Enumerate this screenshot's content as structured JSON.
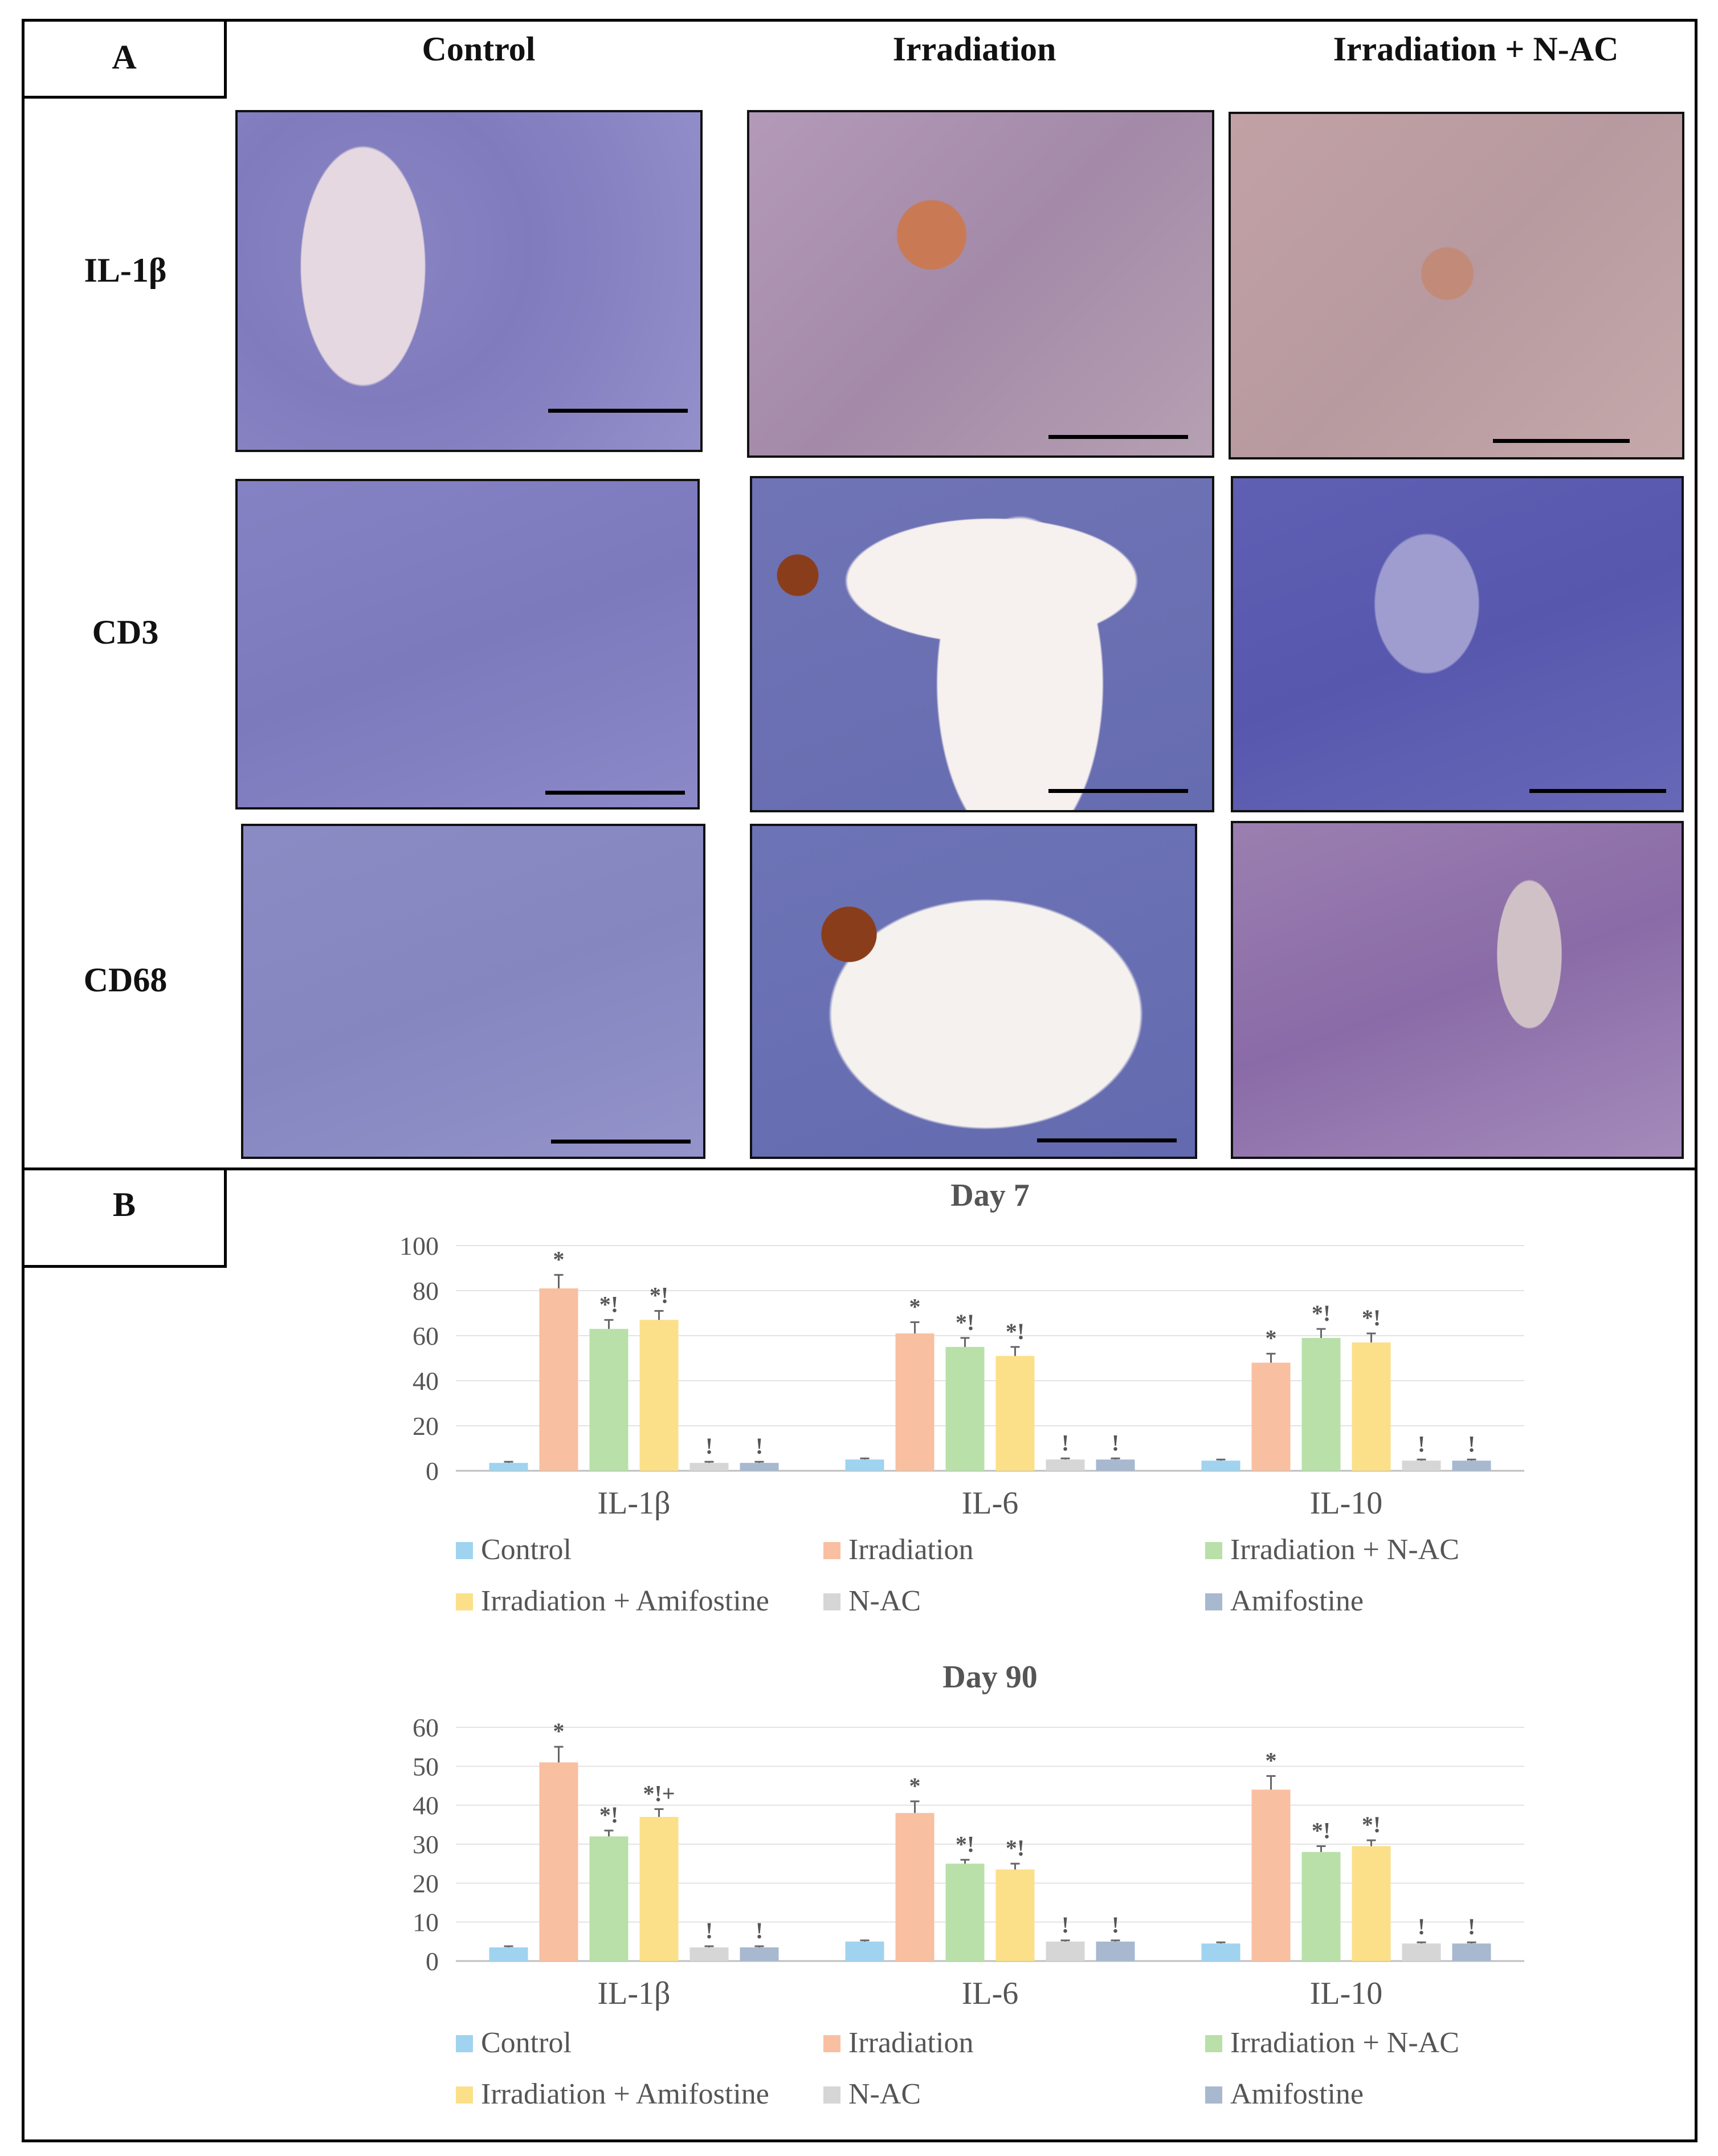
{
  "panel_a": {
    "label": "A",
    "columns": [
      "Control",
      "Irradiation",
      "Irradiation + N-AC"
    ],
    "rows": [
      "IL-1β",
      "CD3",
      "CD68"
    ]
  },
  "panel_b": {
    "label": "B"
  },
  "colors": {
    "Control": "#9fd3ef",
    "Irradiation": "#f9bfa1",
    "Irradiation + N-AC": "#b8e0a8",
    "Irradiation + Amifostine": "#fbe089",
    "N-AC": "#d6d6d6",
    "Amifostine": "#a7b8cf"
  },
  "chart_data": [
    {
      "type": "bar",
      "title": "Day 7",
      "categories": [
        "IL-1β",
        "IL-6",
        "IL-10"
      ],
      "ylim": [
        0,
        100
      ],
      "yticks": [
        0,
        20,
        40,
        60,
        80,
        100
      ],
      "grid": true,
      "legend_position": "bottom",
      "series": [
        {
          "name": "Control",
          "values": [
            3.5,
            5,
            4.5
          ],
          "errors": [
            0.5,
            0.5,
            0.5
          ],
          "annotations": [
            "",
            "",
            ""
          ]
        },
        {
          "name": "Irradiation",
          "values": [
            81,
            61,
            48
          ],
          "errors": [
            6,
            5,
            4
          ],
          "annotations": [
            "*",
            "*",
            "*"
          ]
        },
        {
          "name": "Irradiation + N-AC",
          "values": [
            63,
            55,
            59
          ],
          "errors": [
            4,
            4,
            4
          ],
          "annotations": [
            "*!",
            "*!",
            "*!"
          ]
        },
        {
          "name": "Irradiation + Amifostine",
          "values": [
            67,
            51,
            57
          ],
          "errors": [
            4,
            4,
            4
          ],
          "annotations": [
            "*!",
            "*!",
            "*!"
          ]
        },
        {
          "name": "N-AC",
          "values": [
            3.5,
            5,
            4.5
          ],
          "errors": [
            0.5,
            0.5,
            0.5
          ],
          "annotations": [
            "!",
            "!",
            "!"
          ]
        },
        {
          "name": "Amifostine",
          "values": [
            3.5,
            5,
            4.5
          ],
          "errors": [
            0.5,
            0.5,
            0.5
          ],
          "annotations": [
            "!",
            "!",
            "!"
          ]
        }
      ]
    },
    {
      "type": "bar",
      "title": "Day 90",
      "categories": [
        "IL-1β",
        "IL-6",
        "IL-10"
      ],
      "ylim": [
        0,
        60
      ],
      "yticks": [
        0,
        10,
        20,
        30,
        40,
        50,
        60
      ],
      "grid": true,
      "legend_position": "bottom",
      "series": [
        {
          "name": "Control",
          "values": [
            3.5,
            5,
            4.5
          ],
          "errors": [
            0.3,
            0.3,
            0.3
          ],
          "annotations": [
            "",
            "",
            ""
          ]
        },
        {
          "name": "Irradiation",
          "values": [
            51,
            38,
            44
          ],
          "errors": [
            4,
            3,
            3.5
          ],
          "annotations": [
            "*",
            "*",
            "*"
          ]
        },
        {
          "name": "Irradiation + N-AC",
          "values": [
            32,
            25,
            28
          ],
          "errors": [
            1.5,
            1,
            1.5
          ],
          "annotations": [
            "*!",
            "*!",
            "*!"
          ]
        },
        {
          "name": "Irradiation + Amifostine",
          "values": [
            37,
            23.5,
            29.5
          ],
          "errors": [
            2,
            1.5,
            1.5
          ],
          "annotations": [
            "*!+",
            "*!",
            "*!"
          ]
        },
        {
          "name": "N-AC",
          "values": [
            3.5,
            5,
            4.5
          ],
          "errors": [
            0.3,
            0.3,
            0.3
          ],
          "annotations": [
            "!",
            "!",
            "!"
          ]
        },
        {
          "name": "Amifostine",
          "values": [
            3.5,
            5,
            4.5
          ],
          "errors": [
            0.3,
            0.3,
            0.3
          ],
          "annotations": [
            "!",
            "!",
            "!"
          ]
        }
      ]
    }
  ]
}
